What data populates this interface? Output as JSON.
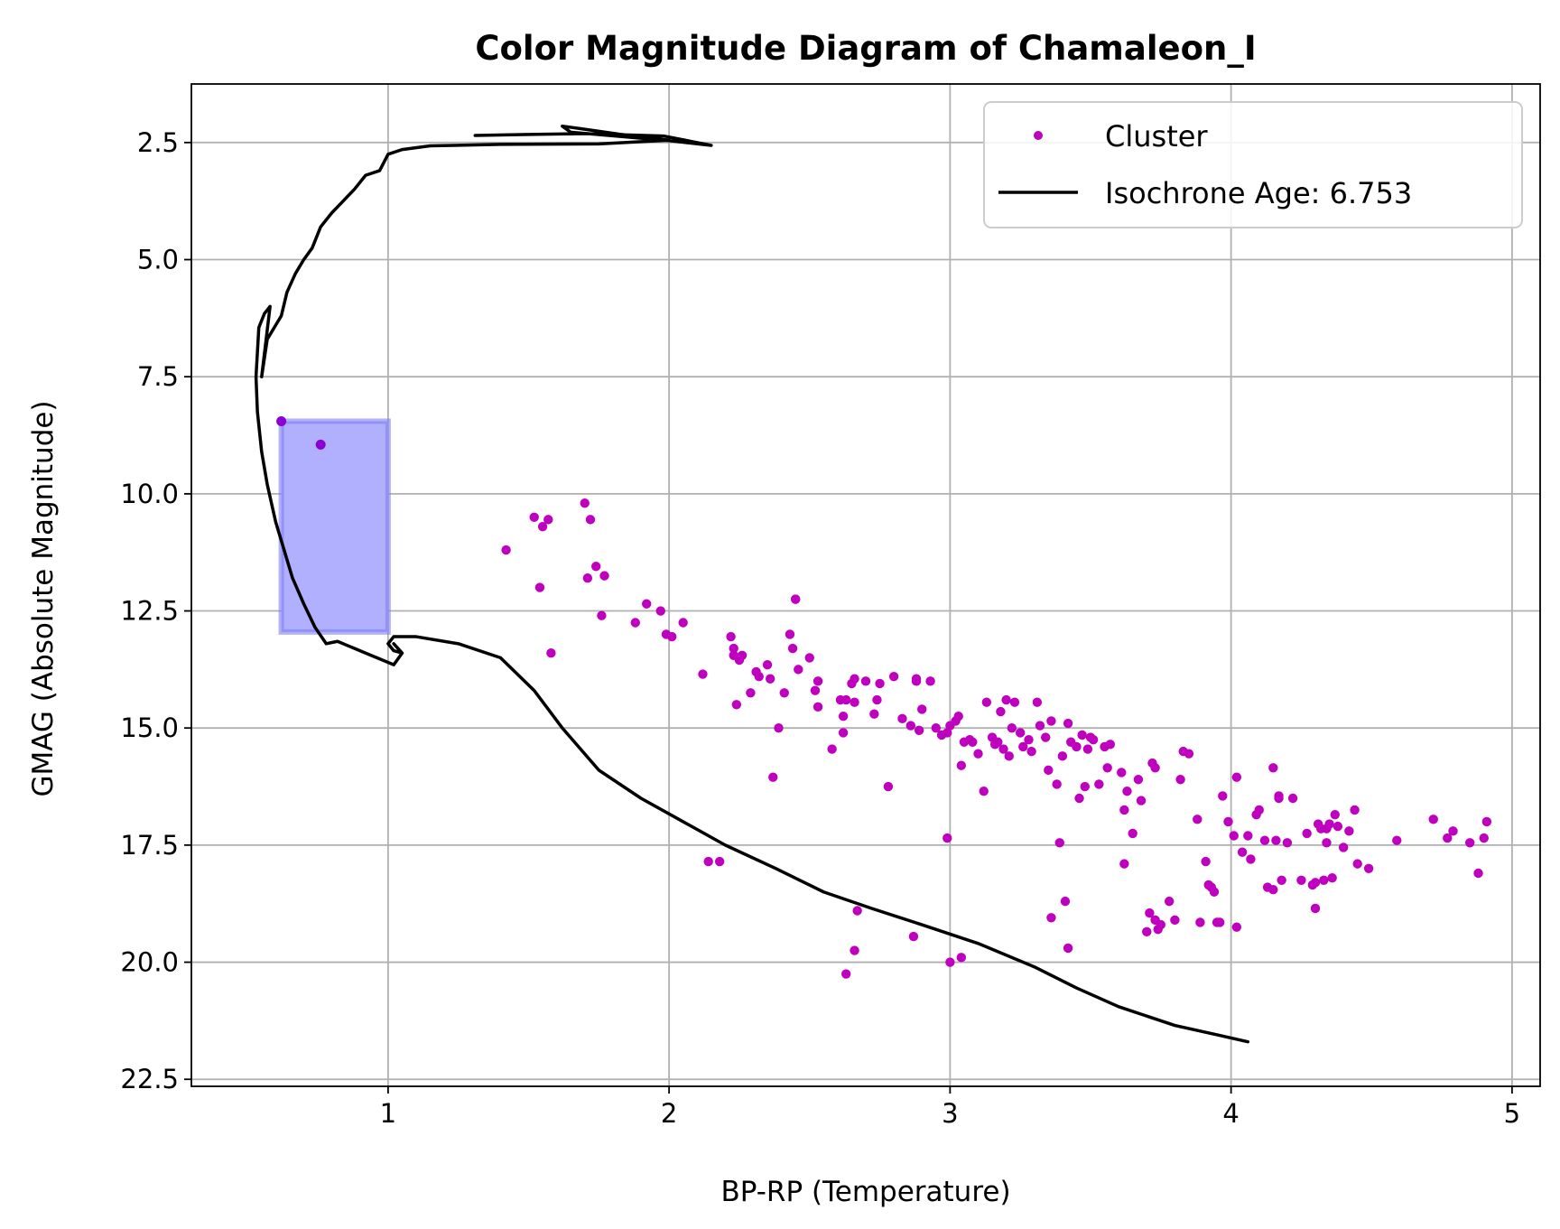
{
  "chart_data": {
    "type": "scatter",
    "title": "Color Magnitude Diagram of Chamaleon_I",
    "xlabel": "BP-RP (Temperature)",
    "ylabel": "GMAG (Absolute Magnitude)",
    "xlim": [
      0.3,
      5.1
    ],
    "ylim": [
      22.65,
      1.25
    ],
    "y_inverted": true,
    "grid": true,
    "legend_position": "top-right",
    "x_ticks": [
      1,
      2,
      3,
      4,
      5
    ],
    "x_tick_labels": [
      "1",
      "2",
      "3",
      "4",
      "5"
    ],
    "y_ticks": [
      2.5,
      5.0,
      7.5,
      10.0,
      12.5,
      15.0,
      17.5,
      20.0,
      22.5
    ],
    "y_tick_labels": [
      "2.5",
      "5.0",
      "7.5",
      "10.0",
      "12.5",
      "15.0",
      "17.5",
      "20.0",
      "22.5"
    ],
    "colors": {
      "cluster": "#bf00bf",
      "highlight_points": "#8a00d4",
      "isochrone": "#000000",
      "highlight_fill": "#b0b0ff",
      "highlight_edge": "#7f7ff5",
      "grid": "#b0b0b0"
    },
    "legend": [
      {
        "label": "Cluster",
        "marker": "dot",
        "color": "#bf00bf"
      },
      {
        "label": "Isochrone Age: 6.753",
        "marker": "line",
        "color": "#000000"
      }
    ],
    "highlight_region": {
      "x0": 0.62,
      "x1": 1.0,
      "y0": 8.45,
      "y1": 12.95
    },
    "highlight_points": {
      "x": [
        0.62,
        0.76
      ],
      "y": [
        8.45,
        8.95
      ]
    },
    "cluster": {
      "x": [
        1.42,
        1.52,
        1.55,
        1.57,
        1.54,
        1.58,
        1.7,
        1.72,
        1.74,
        1.71,
        1.77,
        1.76,
        1.88,
        1.92,
        1.97,
        1.99,
        2.01,
        2.05,
        2.12,
        2.14,
        2.22,
        2.23,
        2.23,
        2.25,
        2.24,
        2.26,
        2.29,
        2.31,
        2.32,
        2.35,
        2.36,
        2.37,
        2.39,
        2.41,
        2.43,
        2.44,
        2.45,
        2.46,
        2.5,
        2.52,
        2.53,
        2.53,
        2.58,
        2.61,
        2.62,
        2.62,
        2.63,
        2.65,
        2.66,
        2.66,
        2.67,
        2.7,
        2.73,
        2.74,
        2.75,
        2.78,
        2.8,
        2.83,
        2.86,
        2.88,
        2.88,
        2.89,
        2.9,
        2.93,
        2.95,
        2.97,
        2.99,
        3.0,
        3.02,
        3.03,
        3.04,
        3.05,
        3.07,
        3.08,
        3.1,
        3.13,
        3.15,
        3.16,
        3.17,
        3.18,
        3.19,
        3.2,
        3.21,
        3.22,
        3.23,
        3.25,
        3.26,
        3.28,
        3.29,
        3.31,
        3.32,
        3.34,
        3.35,
        3.36,
        3.38,
        3.39,
        3.4,
        3.42,
        3.43,
        3.45,
        3.46,
        3.47,
        3.48,
        3.49,
        3.5,
        3.51,
        3.53,
        3.55,
        3.56,
        3.57,
        3.61,
        3.62,
        3.63,
        3.65,
        3.67,
        3.68,
        3.7,
        3.72,
        3.73,
        3.74,
        3.75,
        3.78,
        3.8,
        3.82,
        3.83,
        3.85,
        3.88,
        3.91,
        3.92,
        3.94,
        3.95,
        3.97,
        3.99,
        4.01,
        4.02,
        4.04,
        4.06,
        4.07,
        4.09,
        4.1,
        4.12,
        4.13,
        4.15,
        4.16,
        4.17,
        4.18,
        4.2,
        4.22,
        4.25,
        4.27,
        4.29,
        4.3,
        4.31,
        4.32,
        4.33,
        4.34,
        4.35,
        4.36,
        4.38,
        4.4,
        4.42,
        4.44,
        4.45,
        4.49,
        4.59,
        4.72,
        4.77,
        4.79,
        4.85,
        4.88,
        4.9,
        4.91,
        2.63,
        3.0,
        3.04,
        3.42,
        2.87,
        2.66,
        2.99,
        3.36,
        3.12,
        2.18,
        2.45,
        3.41,
        3.62,
        3.71,
        3.73,
        3.89,
        3.93,
        3.96,
        4.02,
        4.15,
        4.17,
        4.3,
        4.34,
        4.37
      ],
      "y": [
        11.2,
        10.5,
        10.7,
        10.55,
        12.0,
        13.4,
        10.2,
        10.55,
        11.55,
        11.8,
        11.75,
        12.6,
        12.75,
        12.35,
        12.5,
        13.0,
        13.05,
        12.75,
        13.85,
        17.85,
        13.05,
        13.3,
        13.45,
        13.55,
        14.5,
        13.45,
        14.25,
        13.8,
        13.9,
        13.65,
        13.95,
        16.05,
        15.0,
        14.25,
        13.0,
        13.3,
        12.25,
        13.75,
        13.5,
        14.2,
        14.55,
        14.0,
        15.45,
        14.4,
        14.75,
        15.1,
        14.4,
        14.05,
        14.45,
        13.95,
        18.9,
        14.0,
        14.7,
        14.4,
        14.05,
        16.25,
        13.9,
        14.8,
        14.95,
        13.95,
        14.0,
        15.05,
        14.6,
        14.0,
        15.0,
        15.15,
        15.1,
        14.95,
        14.85,
        14.75,
        15.8,
        15.3,
        15.25,
        15.3,
        15.55,
        14.45,
        15.2,
        15.35,
        15.3,
        14.65,
        15.45,
        14.4,
        15.6,
        15.0,
        14.45,
        15.1,
        15.4,
        15.25,
        15.5,
        14.45,
        14.95,
        15.2,
        15.9,
        14.85,
        16.2,
        17.45,
        15.6,
        14.9,
        15.3,
        15.4,
        16.5,
        15.15,
        16.25,
        15.45,
        15.2,
        15.25,
        16.2,
        15.4,
        15.85,
        15.35,
        15.95,
        17.9,
        16.35,
        17.25,
        16.1,
        16.55,
        19.35,
        15.75,
        15.85,
        19.3,
        19.2,
        18.7,
        19.1,
        16.1,
        15.5,
        15.55,
        16.95,
        17.85,
        18.35,
        18.5,
        19.15,
        16.45,
        17.0,
        17.3,
        16.05,
        17.65,
        17.3,
        17.8,
        16.85,
        16.75,
        17.4,
        18.4,
        15.85,
        17.4,
        16.45,
        18.25,
        17.45,
        16.5,
        18.25,
        17.25,
        18.35,
        18.3,
        17.05,
        17.15,
        18.25,
        17.15,
        17.05,
        18.2,
        17.1,
        17.55,
        17.2,
        16.75,
        17.9,
        18.0,
        17.4,
        16.95,
        17.35,
        17.2,
        17.45,
        18.1,
        17.35,
        17.0,
        20.25,
        20.0,
        19.9,
        19.7,
        19.45,
        19.75,
        17.35,
        19.05,
        16.35,
        17.85,
        12.25,
        18.7,
        16.75,
        18.95,
        19.1,
        19.15,
        18.4,
        19.15,
        19.25,
        18.45,
        16.5,
        18.85,
        17.45,
        16.85
      ]
    },
    "isochrone": {
      "x": [
        1.31,
        1.48,
        1.7,
        1.98,
        2.15,
        2.0,
        1.65,
        1.62,
        1.68,
        1.82,
        2.0,
        1.75,
        1.4,
        1.15,
        1.05,
        1.0,
        0.97,
        0.92,
        0.88,
        0.84,
        0.8,
        0.76,
        0.73,
        0.7,
        0.67,
        0.64,
        0.62,
        0.6,
        0.57,
        0.55,
        0.58,
        0.56,
        0.54,
        0.53,
        0.535,
        0.55,
        0.57,
        0.6,
        0.63,
        0.66,
        0.7,
        0.74,
        0.78,
        0.82,
        0.86,
        0.88,
        0.92,
        0.96,
        1.02,
        1.05,
        1.02,
        1.05,
        1.02,
        1.0,
        1.02,
        1.1,
        1.25,
        1.4,
        1.52,
        1.62,
        1.75,
        1.9,
        2.05,
        2.2,
        2.38,
        2.55,
        2.72,
        2.9,
        3.1,
        3.3,
        3.45,
        3.6,
        3.8,
        3.95,
        4.06
      ],
      "y": [
        2.35,
        2.33,
        2.31,
        2.36,
        2.56,
        2.46,
        2.28,
        2.15,
        2.2,
        2.32,
        2.45,
        2.53,
        2.54,
        2.57,
        2.65,
        2.75,
        3.1,
        3.2,
        3.5,
        3.75,
        4.0,
        4.3,
        4.75,
        5.0,
        5.3,
        5.7,
        6.2,
        6.4,
        6.7,
        7.5,
        6.0,
        6.15,
        6.45,
        7.5,
        8.25,
        9.1,
        9.8,
        10.6,
        11.2,
        11.8,
        12.35,
        12.85,
        13.2,
        13.15,
        13.25,
        13.3,
        13.4,
        13.5,
        13.65,
        13.4,
        13.2,
        13.4,
        13.35,
        13.2,
        13.05,
        13.05,
        13.2,
        13.5,
        14.2,
        15.0,
        15.9,
        16.5,
        17.0,
        17.5,
        18.0,
        18.5,
        18.85,
        19.2,
        19.6,
        20.1,
        20.55,
        20.95,
        21.35,
        21.55,
        21.7
      ]
    }
  }
}
